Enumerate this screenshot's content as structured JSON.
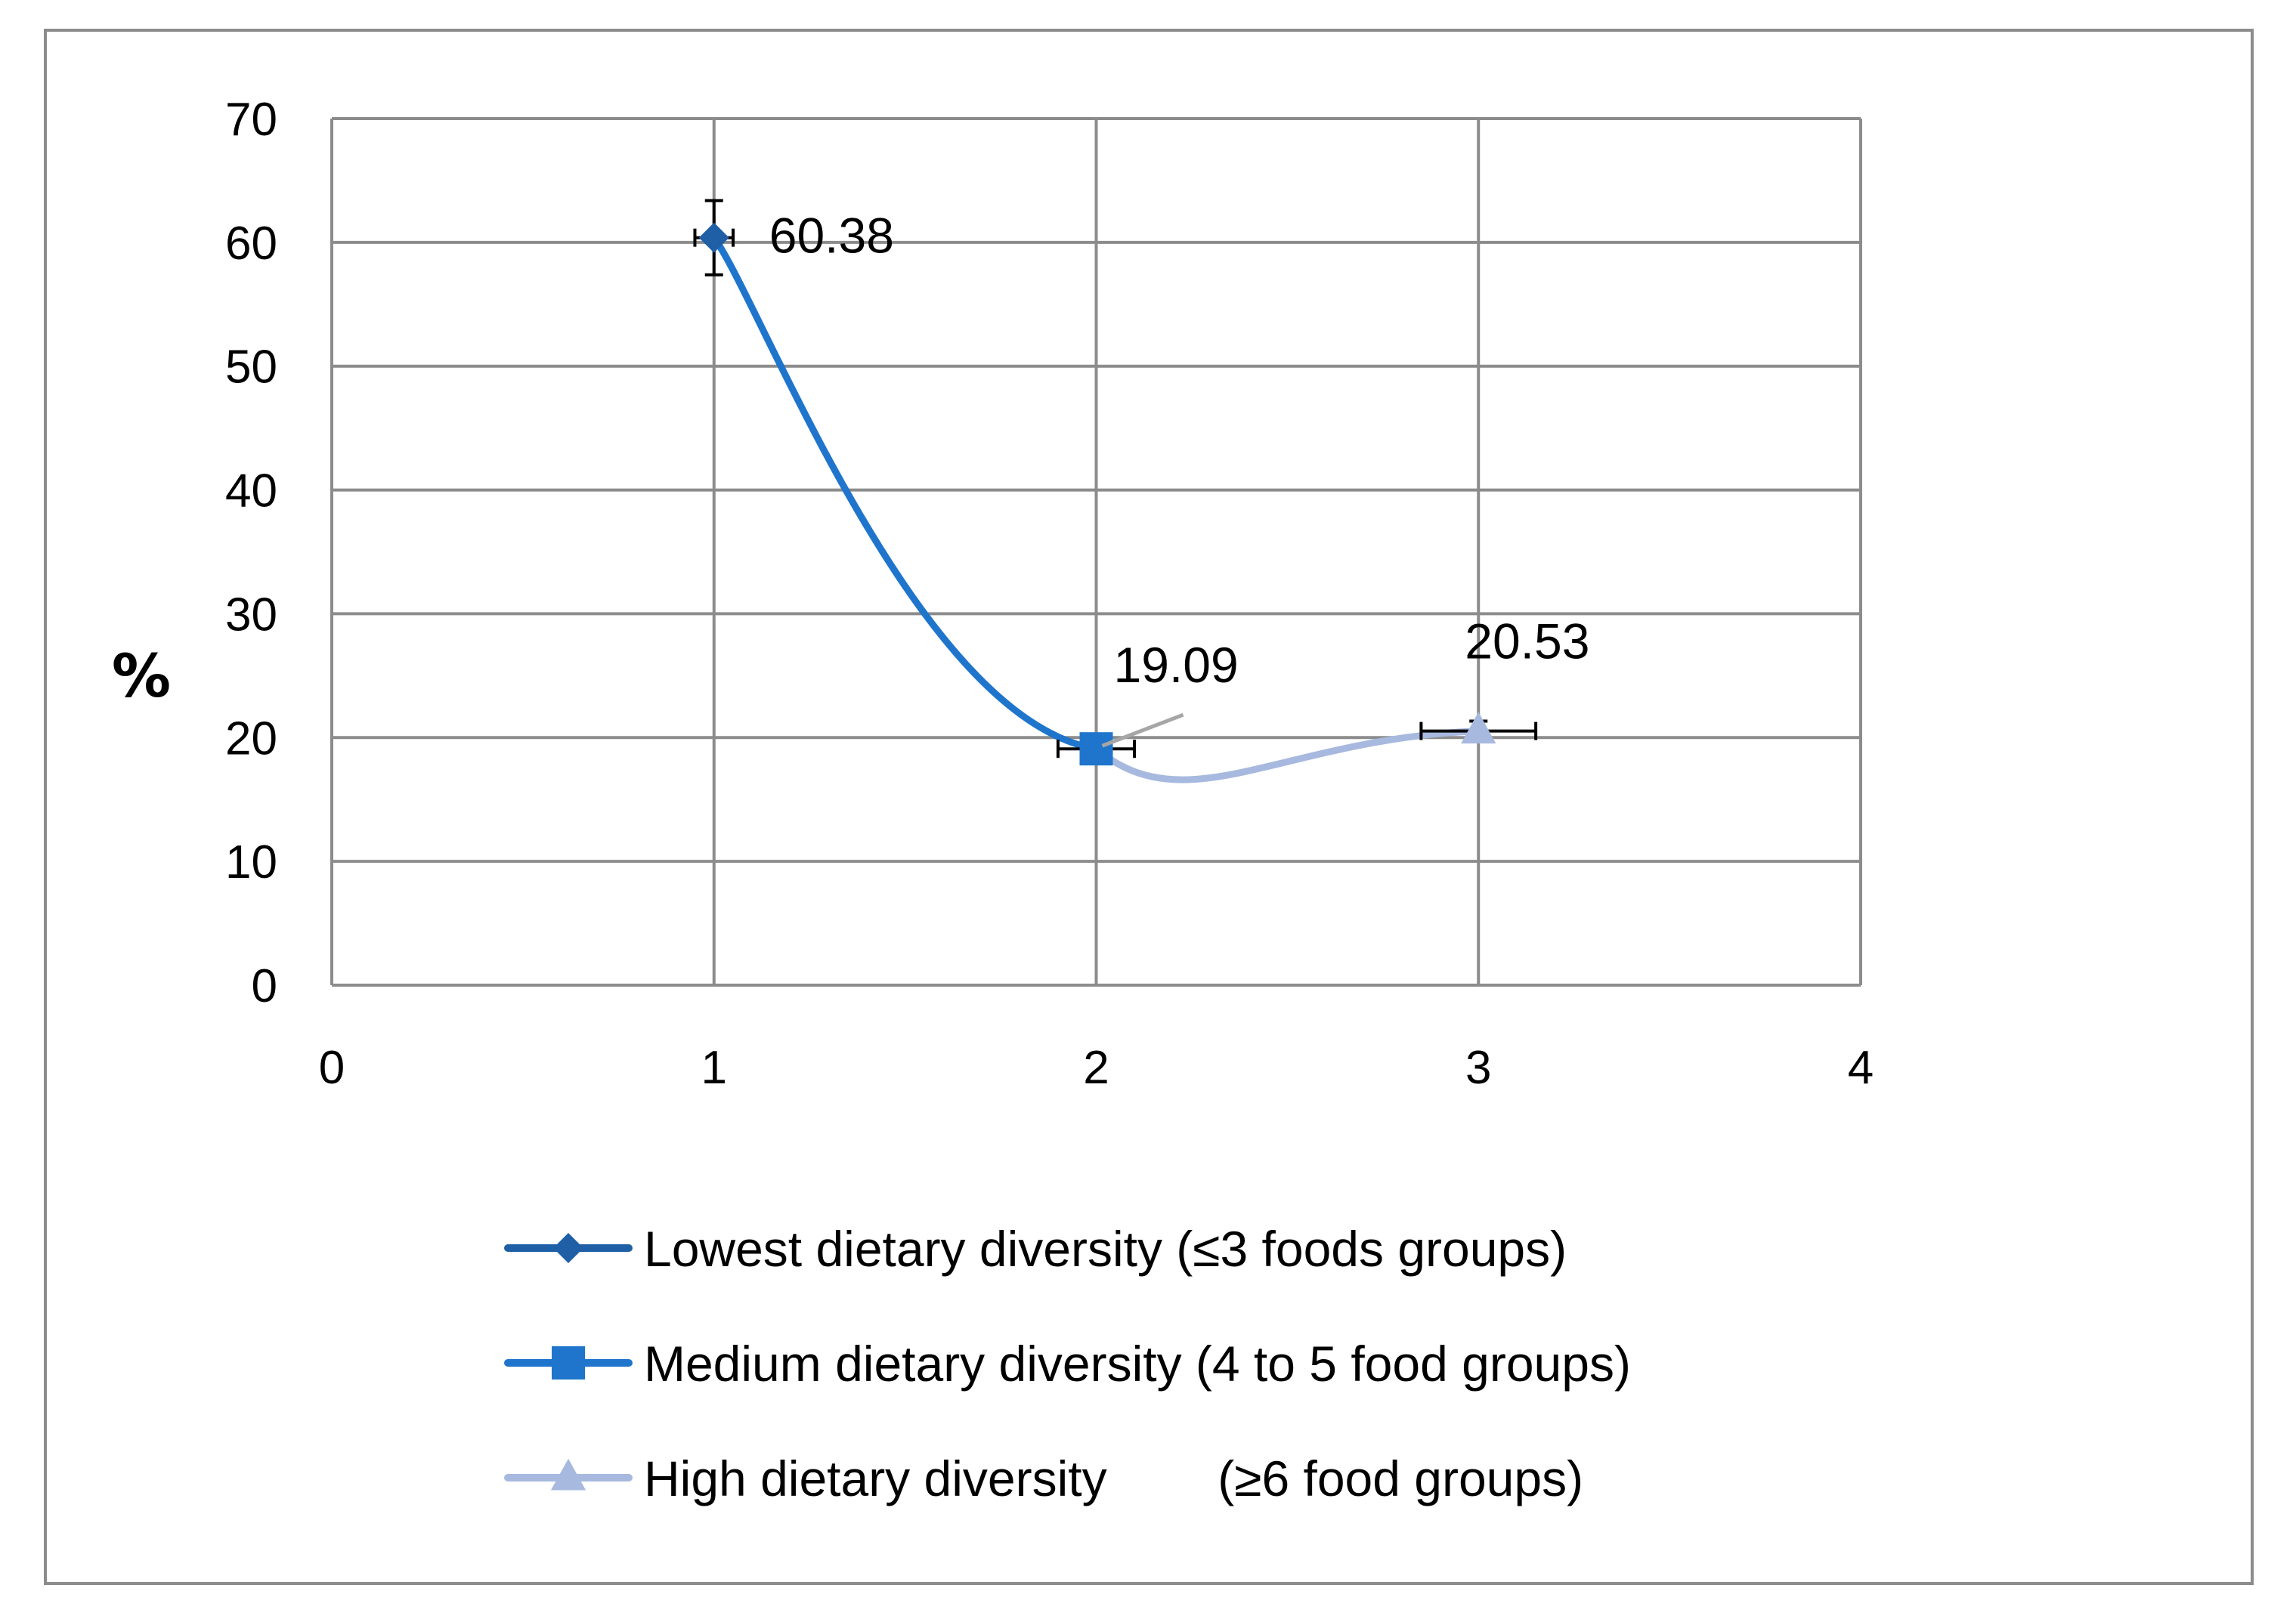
{
  "chart_data": {
    "type": "line",
    "title": "",
    "xlabel": "",
    "ylabel": "%",
    "xlim": [
      0,
      4
    ],
    "ylim": [
      0,
      70
    ],
    "x_ticks": [
      "0",
      "1",
      "2",
      "3",
      "4"
    ],
    "y_ticks": [
      "0",
      "10",
      "20",
      "30",
      "40",
      "50",
      "60",
      "70"
    ],
    "grid": true,
    "legend_position": "bottom",
    "series": [
      {
        "name": "Lowest dietary diversity (≤3 foods groups)",
        "marker": "diamond",
        "color": "#1f5fa6",
        "points": [
          {
            "x": 1,
            "y": 60.38,
            "label": "60.38"
          }
        ],
        "error_y": 3.0,
        "error_x": 0.05
      },
      {
        "name": "Medium dietary diversity (4 to 5 food groups)",
        "marker": "square",
        "color": "#1f75cc",
        "points": [
          {
            "x": 2,
            "y": 19.09,
            "label": "19.09"
          }
        ],
        "error_y": 0.5,
        "error_x": 0.1
      },
      {
        "name": "High dietary diversity        (≥6 food groups)",
        "marker": "triangle",
        "color": "#a7b9de",
        "points": [
          {
            "x": 3,
            "y": 20.53,
            "label": "20.53"
          }
        ],
        "error_y": 0.8,
        "error_x": 0.15
      }
    ],
    "connecting_curve": [
      {
        "from": [
          1,
          60.38
        ],
        "to": [
          2,
          19.09
        ],
        "color": "#1f75cc"
      },
      {
        "from": [
          2,
          19.09
        ],
        "to": [
          3,
          20.53
        ],
        "color": "#a7b9de"
      }
    ]
  }
}
